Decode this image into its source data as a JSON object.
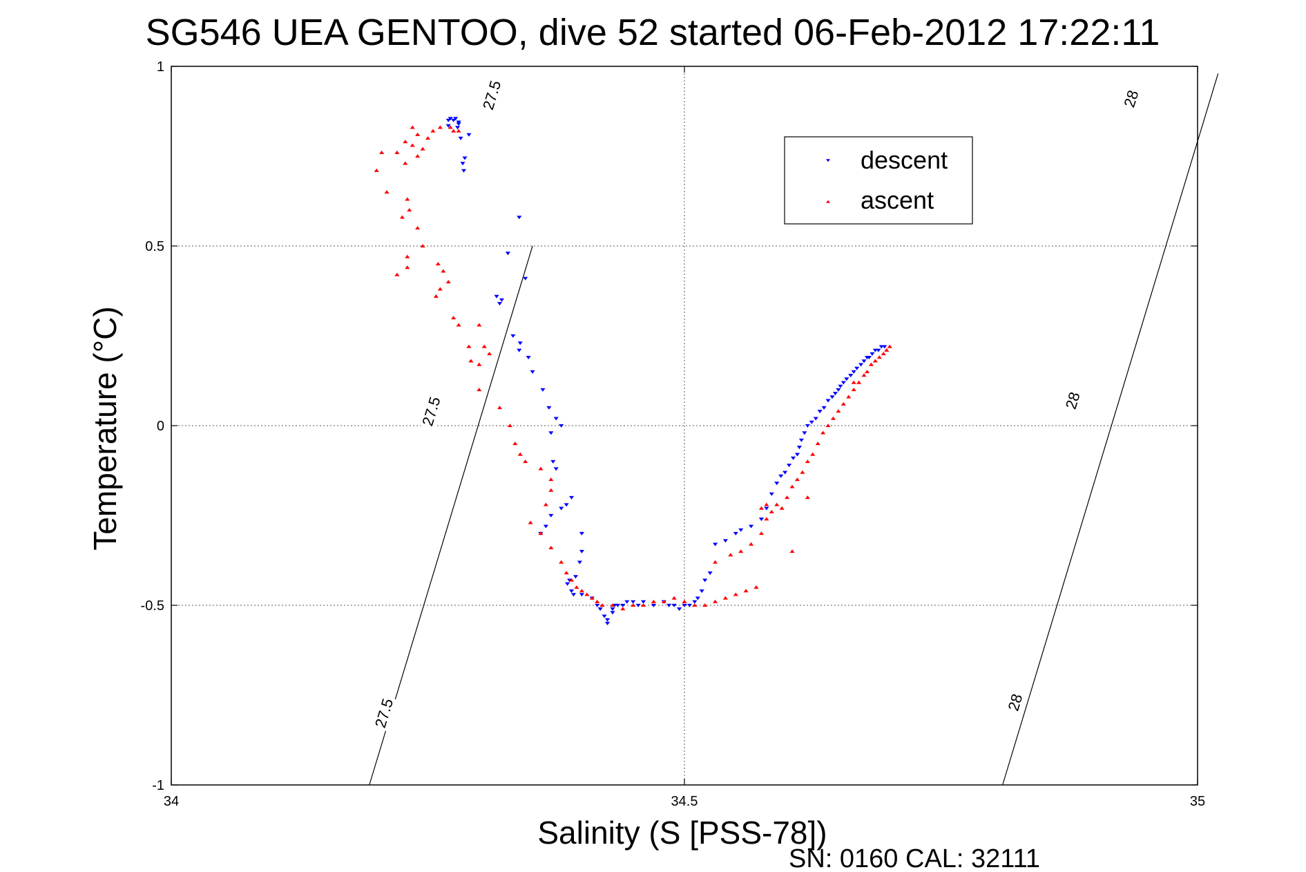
{
  "chart_data": {
    "type": "scatter",
    "title": "SG546 UEA GENTOO, dive 52 started 06-Feb-2012 17:22:11",
    "xlabel": "Salinity (S [PSS-78])",
    "ylabel": "Temperature (°C)",
    "xlim": [
      34,
      35
    ],
    "ylim": [
      -1,
      1
    ],
    "xticks": [
      34,
      34.5,
      35
    ],
    "xtick_labels": [
      "34",
      "34.5",
      "35"
    ],
    "yticks": [
      -1,
      -0.5,
      0,
      0.5,
      1
    ],
    "ytick_labels": [
      "-1",
      "-0.5",
      "0",
      "0.5",
      "1"
    ],
    "grid": true,
    "legend_position": "top-right",
    "series": [
      {
        "name": "descent",
        "color": "#0000ff",
        "marker": "triangle-down",
        "x": [
          34.272,
          34.275,
          34.277,
          34.28,
          34.28,
          34.27,
          34.27,
          34.279,
          34.282,
          34.284,
          34.286,
          34.29,
          34.285,
          34.339,
          34.328,
          34.345,
          34.32,
          34.317,
          34.322,
          34.333,
          34.34,
          34.339,
          34.348,
          34.352,
          34.362,
          34.368,
          34.375,
          34.38,
          34.37,
          34.372,
          34.375,
          34.39,
          34.37,
          34.365,
          34.36,
          34.38,
          34.385,
          34.4,
          34.4,
          34.398,
          34.394,
          34.388,
          34.386,
          34.39,
          34.392,
          34.4,
          34.41,
          34.415,
          34.418,
          34.422,
          34.425,
          34.425,
          34.43,
          34.43,
          34.432,
          34.435,
          34.44,
          34.444,
          34.45,
          34.455,
          34.46,
          34.47,
          34.48,
          34.485,
          34.49,
          34.495,
          34.5,
          34.505,
          34.51,
          34.513,
          34.517,
          34.52,
          34.525,
          34.53,
          34.54,
          34.55,
          34.555,
          34.565,
          34.575,
          34.58,
          34.585,
          34.59,
          34.594,
          34.598,
          34.602,
          34.606,
          34.61,
          34.612,
          34.614,
          34.617,
          34.62,
          34.624,
          34.628,
          34.632,
          34.636,
          34.64,
          34.644,
          34.647,
          34.65,
          34.652,
          34.655,
          34.658,
          34.662,
          34.665,
          34.668,
          34.672,
          34.675,
          34.678,
          34.68,
          34.683,
          34.686,
          34.689,
          34.692,
          34.695
        ],
        "y": [
          0.855,
          0.85,
          0.855,
          0.845,
          0.84,
          0.835,
          0.85,
          0.83,
          0.8,
          0.73,
          0.745,
          0.81,
          0.71,
          0.58,
          0.48,
          0.41,
          0.34,
          0.36,
          0.35,
          0.25,
          0.23,
          0.21,
          0.19,
          0.15,
          0.1,
          0.05,
          0.02,
          0.0,
          -0.02,
          -0.1,
          -0.12,
          -0.2,
          -0.25,
          -0.28,
          -0.3,
          -0.23,
          -0.22,
          -0.3,
          -0.35,
          -0.38,
          -0.42,
          -0.43,
          -0.44,
          -0.46,
          -0.47,
          -0.47,
          -0.48,
          -0.5,
          -0.51,
          -0.53,
          -0.54,
          -0.55,
          -0.52,
          -0.51,
          -0.5,
          -0.5,
          -0.5,
          -0.49,
          -0.49,
          -0.5,
          -0.49,
          -0.5,
          -0.49,
          -0.5,
          -0.5,
          -0.51,
          -0.5,
          -0.5,
          -0.49,
          -0.48,
          -0.46,
          -0.43,
          -0.41,
          -0.33,
          -0.32,
          -0.3,
          -0.29,
          -0.28,
          -0.26,
          -0.23,
          -0.19,
          -0.16,
          -0.14,
          -0.13,
          -0.11,
          -0.09,
          -0.08,
          -0.06,
          -0.04,
          -0.02,
          0.0,
          0.01,
          0.02,
          0.04,
          0.05,
          0.07,
          0.08,
          0.09,
          0.1,
          0.11,
          0.12,
          0.13,
          0.14,
          0.15,
          0.16,
          0.17,
          0.18,
          0.19,
          0.19,
          0.2,
          0.21,
          0.21,
          0.22,
          0.22
        ]
      },
      {
        "name": "ascent",
        "color": "#ff0000",
        "marker": "triangle-up",
        "x": [
          34.272,
          34.275,
          34.28,
          34.262,
          34.255,
          34.25,
          34.245,
          34.24,
          34.235,
          34.228,
          34.22,
          34.228,
          34.235,
          34.24,
          34.205,
          34.2,
          34.21,
          34.23,
          34.225,
          34.232,
          34.24,
          34.245,
          34.23,
          34.22,
          34.23,
          34.26,
          34.265,
          34.27,
          34.262,
          34.258,
          34.275,
          34.28,
          34.3,
          34.29,
          34.292,
          34.3,
          34.305,
          34.31,
          34.3,
          34.32,
          34.33,
          34.335,
          34.34,
          34.345,
          34.36,
          34.37,
          34.37,
          34.365,
          34.35,
          34.36,
          34.37,
          34.38,
          34.385,
          34.39,
          34.395,
          34.4,
          34.405,
          34.41,
          34.415,
          34.42,
          34.43,
          34.44,
          34.45,
          34.46,
          34.47,
          34.48,
          34.49,
          34.5,
          34.51,
          34.52,
          34.53,
          34.54,
          34.55,
          34.56,
          34.57,
          34.53,
          34.545,
          34.555,
          34.565,
          34.575,
          34.58,
          34.585,
          34.58,
          34.575,
          34.59,
          34.595,
          34.6,
          34.605,
          34.61,
          34.615,
          34.62,
          34.625,
          34.63,
          34.635,
          34.64,
          34.645,
          34.65,
          34.655,
          34.66,
          34.665,
          34.67,
          34.675,
          34.678,
          34.682,
          34.686,
          34.69,
          34.694,
          34.697,
          34.7,
          34.665,
          34.605,
          34.62
        ],
        "y": [
          0.83,
          0.82,
          0.82,
          0.83,
          0.82,
          0.8,
          0.77,
          0.81,
          0.83,
          0.79,
          0.76,
          0.73,
          0.78,
          0.75,
          0.76,
          0.71,
          0.65,
          0.63,
          0.58,
          0.6,
          0.55,
          0.5,
          0.47,
          0.42,
          0.44,
          0.45,
          0.43,
          0.4,
          0.38,
          0.36,
          0.3,
          0.28,
          0.28,
          0.22,
          0.18,
          0.17,
          0.22,
          0.2,
          0.1,
          0.05,
          0.0,
          -0.05,
          -0.08,
          -0.1,
          -0.12,
          -0.15,
          -0.18,
          -0.22,
          -0.27,
          -0.3,
          -0.34,
          -0.38,
          -0.41,
          -0.43,
          -0.45,
          -0.46,
          -0.47,
          -0.48,
          -0.49,
          -0.5,
          -0.5,
          -0.51,
          -0.5,
          -0.5,
          -0.49,
          -0.49,
          -0.48,
          -0.49,
          -0.5,
          -0.5,
          -0.49,
          -0.48,
          -0.47,
          -0.46,
          -0.45,
          -0.38,
          -0.36,
          -0.35,
          -0.33,
          -0.3,
          -0.26,
          -0.24,
          -0.22,
          -0.23,
          -0.22,
          -0.23,
          -0.2,
          -0.17,
          -0.15,
          -0.13,
          -0.1,
          -0.08,
          -0.05,
          -0.02,
          0.0,
          0.02,
          0.04,
          0.06,
          0.08,
          0.1,
          0.12,
          0.14,
          0.15,
          0.17,
          0.18,
          0.19,
          0.2,
          0.21,
          0.22,
          0.12,
          -0.35,
          -0.2
        ]
      }
    ],
    "contours": [
      {
        "label": "27.5",
        "points": [
          [
            34.193,
            -1.0
          ],
          [
            34.245,
            -0.5
          ],
          [
            34.298,
            0.0
          ],
          [
            34.352,
            0.5
          ],
          [
            34.325,
            0.25
          ],
          [
            34.322,
            0.22
          ],
          [
            34.315,
            0.15
          ],
          [
            34.305,
            0.07
          ],
          [
            34.29,
            -0.07
          ],
          [
            34.28,
            -0.17
          ],
          [
            34.27,
            -0.27
          ],
          [
            34.26,
            -0.36
          ],
          [
            34.25,
            -0.45
          ],
          [
            34.24,
            -0.55
          ],
          [
            34.23,
            -0.64
          ],
          [
            34.22,
            -0.74
          ],
          [
            34.21,
            -0.84
          ],
          [
            34.2,
            -0.93
          ],
          [
            34.193,
            -1.0
          ]
        ],
        "label_positions": [
          [
            34.207,
            -0.8
          ],
          [
            34.253,
            0.04
          ],
          [
            34.312,
            0.92
          ]
        ]
      },
      {
        "label": "28",
        "points": [
          [
            34.81,
            -1.0
          ],
          [
            34.84,
            -0.72
          ],
          [
            34.86,
            -0.52
          ],
          [
            34.88,
            -0.33
          ],
          [
            34.9,
            -0.14
          ],
          [
            34.92,
            0.04
          ],
          [
            34.94,
            0.23
          ],
          [
            34.96,
            0.42
          ],
          [
            34.98,
            0.61
          ],
          [
            35.0,
            0.8
          ],
          [
            35.02,
            0.98
          ]
        ],
        "label_positions": [
          [
            34.822,
            -0.77
          ],
          [
            34.878,
            0.07
          ],
          [
            34.935,
            0.91
          ]
        ]
      }
    ],
    "footer": "SN: 0160  CAL: 32111"
  }
}
